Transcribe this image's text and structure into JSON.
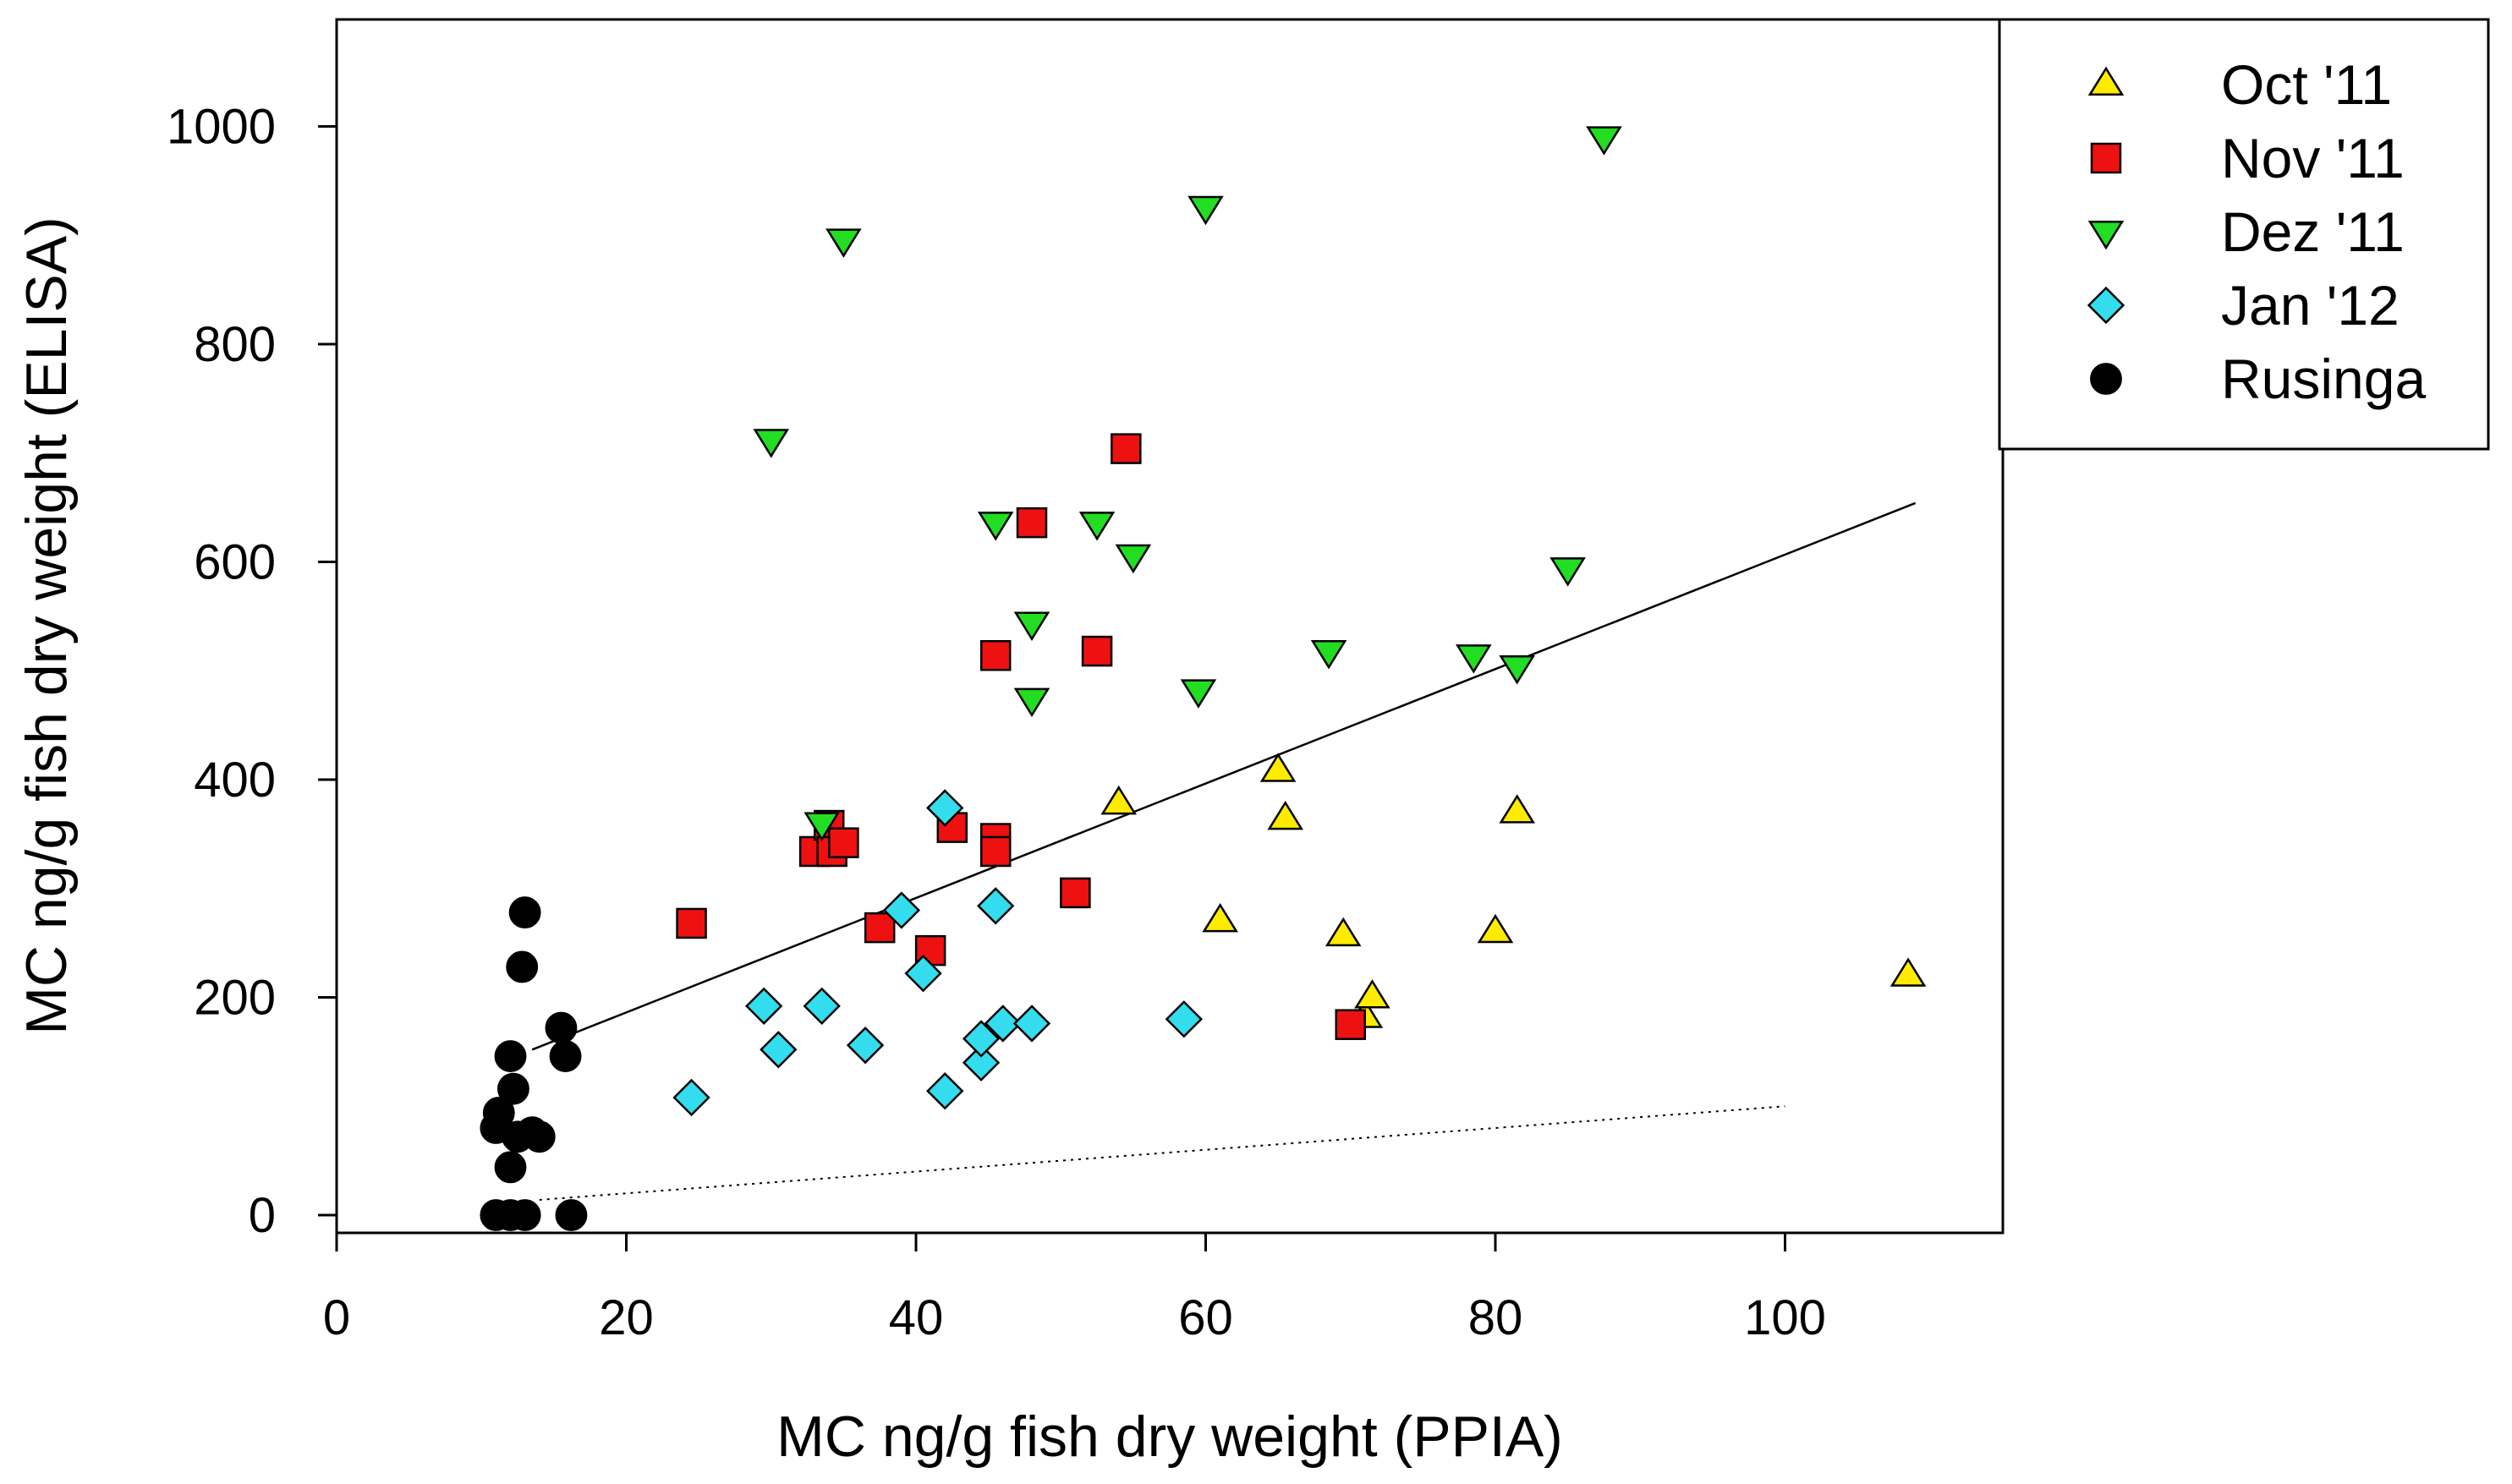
{
  "chart_data": {
    "type": "scatter",
    "title": "",
    "xlabel": "MC ng/g fish dry weight (PPIA)",
    "ylabel": "MC ng/g fish dry weight (ELISA)",
    "xlim": [
      -1,
      115
    ],
    "ylim": [
      -12,
      1100
    ],
    "xticks": [
      0,
      20,
      40,
      60,
      80,
      100
    ],
    "yticks": [
      0,
      200,
      400,
      600,
      800,
      1000
    ],
    "grid": false,
    "legend_position": "top-right, outside plot",
    "series": [
      {
        "name": "Oct '11",
        "marker": "triangle-up",
        "color": "#FFEB00",
        "points": [
          [
            54,
            378
          ],
          [
            65,
            408
          ],
          [
            65.5,
            364
          ],
          [
            61,
            270
          ],
          [
            69.5,
            257
          ],
          [
            71,
            182
          ],
          [
            71.5,
            200
          ],
          [
            80,
            260
          ],
          [
            81.5,
            370
          ],
          [
            108.5,
            220
          ]
        ]
      },
      {
        "name": "Nov '11",
        "marker": "square",
        "color": "#EE1111",
        "points": [
          [
            24.5,
            268
          ],
          [
            33,
            334
          ],
          [
            34,
            358
          ],
          [
            34.2,
            334
          ],
          [
            35,
            342
          ],
          [
            37.5,
            264
          ],
          [
            41,
            243
          ],
          [
            42.5,
            356
          ],
          [
            45.5,
            346
          ],
          [
            45.5,
            334
          ],
          [
            45.5,
            514
          ],
          [
            48,
            636
          ],
          [
            51,
            296
          ],
          [
            52.5,
            518
          ],
          [
            54.5,
            704
          ],
          [
            70,
            175
          ]
        ]
      },
      {
        "name": "Dez '11",
        "marker": "triangle-down",
        "color": "#22DD22",
        "points": [
          [
            30,
            712
          ],
          [
            33.5,
            360
          ],
          [
            35,
            896
          ],
          [
            45.5,
            636
          ],
          [
            48,
            544
          ],
          [
            48,
            474
          ],
          [
            52.5,
            636
          ],
          [
            55,
            606
          ],
          [
            59.5,
            482
          ],
          [
            60,
            926
          ],
          [
            68.5,
            518
          ],
          [
            78.5,
            514
          ],
          [
            81.5,
            504
          ],
          [
            85,
            594
          ],
          [
            87.5,
            990
          ]
        ]
      },
      {
        "name": "Jan '12",
        "marker": "diamond",
        "color": "#33DDEE",
        "points": [
          [
            24.5,
            108
          ],
          [
            29.5,
            192
          ],
          [
            30.5,
            152
          ],
          [
            33.5,
            192
          ],
          [
            36.5,
            156
          ],
          [
            39,
            280
          ],
          [
            40.5,
            222
          ],
          [
            42,
            374
          ],
          [
            42,
            114
          ],
          [
            44.5,
            140
          ],
          [
            44.5,
            162
          ],
          [
            45.5,
            284
          ],
          [
            46,
            176
          ],
          [
            48,
            176
          ],
          [
            58.5,
            180
          ]
        ]
      },
      {
        "name": "Rusinga",
        "marker": "circle",
        "color": "#000000",
        "points": [
          [
            11,
            0
          ],
          [
            11,
            80
          ],
          [
            11.2,
            94
          ],
          [
            12,
            0
          ],
          [
            12,
            44
          ],
          [
            12,
            146
          ],
          [
            12.2,
            116
          ],
          [
            12.5,
            72
          ],
          [
            12.8,
            228
          ],
          [
            13,
            278
          ],
          [
            13,
            0
          ],
          [
            13.5,
            76
          ],
          [
            14,
            72
          ],
          [
            15.5,
            172
          ],
          [
            15.8,
            146
          ],
          [
            16.2,
            0
          ]
        ]
      }
    ],
    "lines": [
      {
        "style": "solid",
        "x": [
          13.5,
          109
        ],
        "y": [
          152,
          654
        ]
      },
      {
        "style": "dotted",
        "x": [
          14,
          100
        ],
        "y": [
          14,
          100
        ]
      }
    ]
  }
}
